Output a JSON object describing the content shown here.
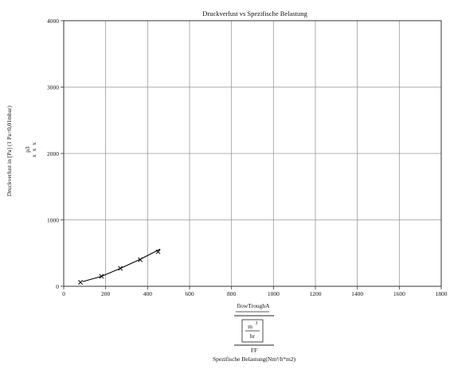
{
  "chart_data": {
    "type": "line",
    "title": "Druckverlust vs Spezifische Belastung",
    "ylabel": "Druckverlust in [Pa] (1 Pa=0,01mbar)",
    "ylabel_unit": "p3",
    "ylabel_underset": "x x x",
    "xlabel": "Spezifische Belastung(Nm³/h*m2)",
    "x_expr": {
      "numerator": "flowTroughA",
      "inner_numerator": "m",
      "inner_exponent": "3",
      "inner_denominator": "hr",
      "denominator": "FF"
    },
    "xlim": [
      0,
      1800
    ],
    "ylim": [
      0,
      4000
    ],
    "x_ticks": [
      "0",
      "200",
      "400",
      "600",
      "800",
      "1000",
      "1200",
      "1400",
      "1600",
      "1800"
    ],
    "y_ticks": [
      "0",
      "1000",
      "2000",
      "3000",
      "4000"
    ],
    "x_tick_values": [
      0,
      200,
      400,
      600,
      800,
      1000,
      1200,
      1400,
      1600,
      1800
    ],
    "y_tick_values": [
      0,
      1000,
      2000,
      3000,
      4000
    ],
    "grid": true,
    "series": [
      {
        "line_x": [
          90,
          180,
          270,
          360,
          460
        ],
        "line_y": [
          70,
          150,
          270,
          400,
          560
        ],
        "marker": "x",
        "points_x": [
          80,
          180,
          270,
          365,
          450
        ],
        "points_y": [
          60,
          150,
          270,
          400,
          520
        ],
        "color": "#000000"
      }
    ]
  }
}
